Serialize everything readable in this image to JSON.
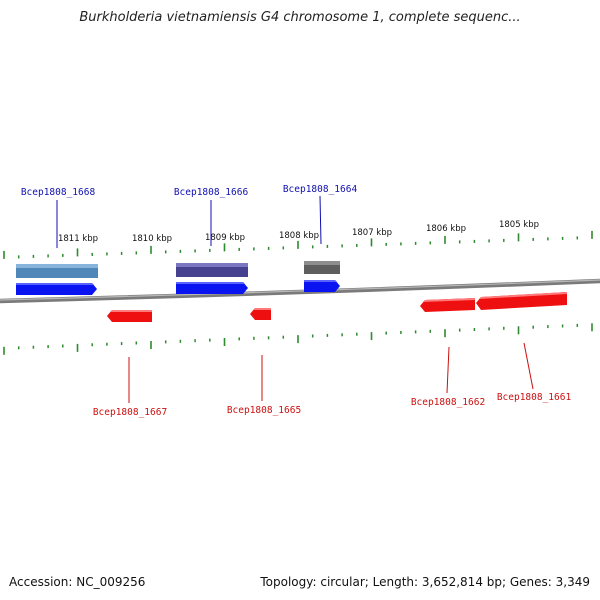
{
  "title": "Burkholderia vietnamiensis G4 chromosome 1, complete sequenc...",
  "footer": {
    "accession": "Accession: NC_009256",
    "summary": "Topology: circular; Length: 3,652,814 bp; Genes: 3,349"
  },
  "colors": {
    "tick": "#2e8b2e",
    "backbone": "#8a8a8a",
    "forward_label": "#1010b0",
    "reverse_label": "#cc1010",
    "forward_arrow": "#0a14f0",
    "reverse_arrow": "#ee1010"
  },
  "scale_labels": [
    "1811 kbp",
    "1810 kbp",
    "1809 kbp",
    "1808 kbp",
    "1807 kbp",
    "1806 kbp",
    "1805 kbp"
  ],
  "genes": {
    "forward": [
      "Bcep1808_1668",
      "Bcep1808_1666",
      "Bcep1808_1664"
    ],
    "reverse": [
      "Bcep1808_1667",
      "Bcep1808_1665",
      "Bcep1808_1662",
      "Bcep1808_1661"
    ]
  }
}
